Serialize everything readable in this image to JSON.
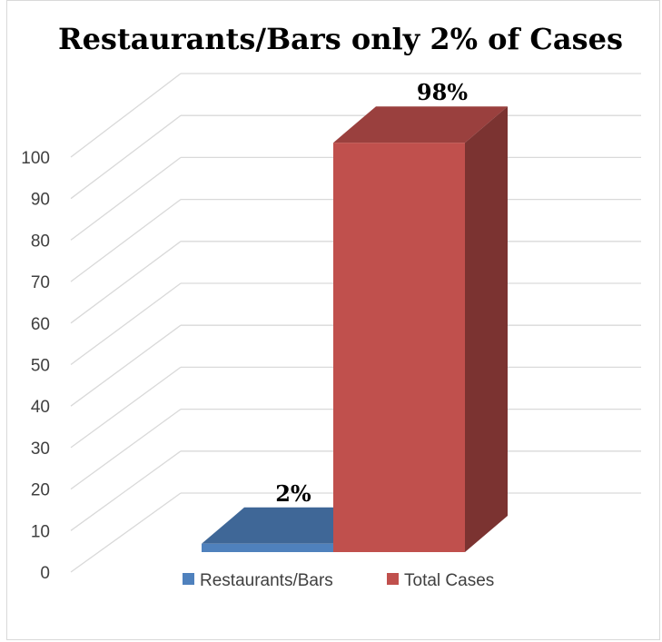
{
  "chart_data": {
    "type": "bar",
    "title": "Restaurants/Bars only 2% of Cases",
    "categories": [
      "Restaurants/Bars",
      "Total Cases"
    ],
    "values": [
      2,
      98
    ],
    "data_labels": [
      "2%",
      "98%"
    ],
    "ylim": [
      0,
      100
    ],
    "yticks": [
      0,
      10,
      20,
      30,
      40,
      50,
      60,
      70,
      80,
      90,
      100
    ],
    "grid": true,
    "three_d": true,
    "legend": {
      "position": "bottom",
      "entries": [
        "Restaurants/Bars",
        "Total Cases"
      ]
    },
    "colors": {
      "Restaurants/Bars": "#4F81BD",
      "Total Cases": "#C0504D"
    }
  }
}
